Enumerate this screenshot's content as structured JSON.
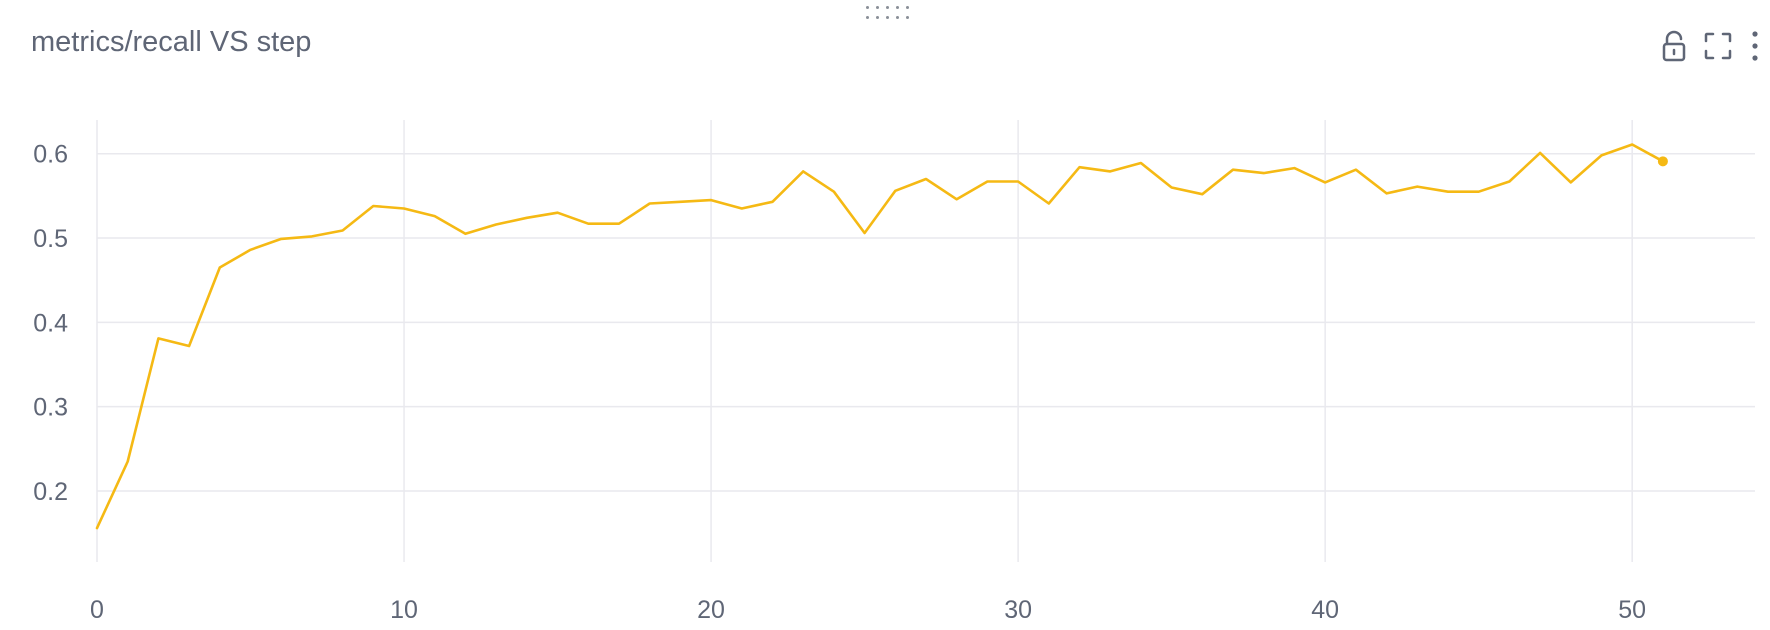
{
  "panel": {
    "title": "metrics/recall VS step"
  },
  "toolbar": {
    "icons": [
      "unlock-icon",
      "fullscreen-icon",
      "more-vertical-icon"
    ]
  },
  "colors": {
    "series": "#F5B914",
    "grid": "#e9e9ee",
    "text": "#5f6676"
  },
  "chart_data": {
    "type": "line",
    "title": "metrics/recall VS step",
    "xlabel": "",
    "ylabel": "",
    "xlim": [
      0,
      54
    ],
    "ylim": [
      0.13,
      0.64
    ],
    "xticks": [
      0,
      10,
      20,
      30,
      40,
      50
    ],
    "yticks": [
      0.2,
      0.3,
      0.4,
      0.5,
      0.6
    ],
    "grid": true,
    "legend": "none",
    "series": [
      {
        "color": "#F5B914",
        "x": [
          0,
          1,
          2,
          3,
          4,
          5,
          6,
          7,
          8,
          9,
          10,
          11,
          12,
          13,
          14,
          15,
          16,
          17,
          18,
          19,
          20,
          21,
          22,
          23,
          24,
          25,
          26,
          27,
          28,
          29,
          30,
          31,
          32,
          33,
          34,
          35,
          36,
          37,
          38,
          39,
          40,
          41,
          42,
          43,
          44,
          45,
          46,
          47,
          48,
          49,
          50,
          51
        ],
        "y": [
          0.156,
          0.235,
          0.381,
          0.372,
          0.465,
          0.486,
          0.499,
          0.502,
          0.509,
          0.538,
          0.535,
          0.526,
          0.505,
          0.516,
          0.524,
          0.53,
          0.517,
          0.517,
          0.541,
          0.543,
          0.545,
          0.535,
          0.543,
          0.579,
          0.555,
          0.506,
          0.556,
          0.57,
          0.546,
          0.567,
          0.567,
          0.541,
          0.584,
          0.579,
          0.589,
          0.56,
          0.552,
          0.581,
          0.577,
          0.583,
          0.566,
          0.581,
          0.553,
          0.561,
          0.555,
          0.555,
          0.567,
          0.601,
          0.566,
          0.598,
          0.611,
          0.591
        ]
      }
    ]
  }
}
